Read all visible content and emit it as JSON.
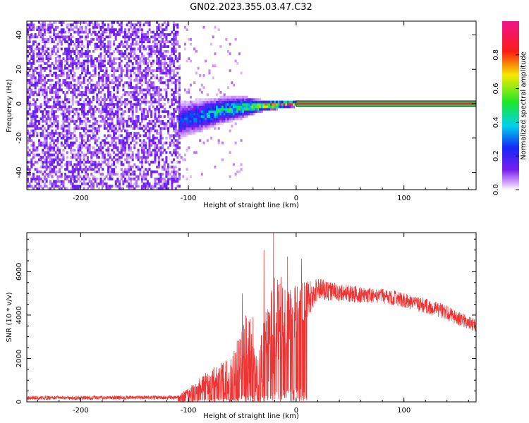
{
  "title": "GN02.2023.355.03.47.C32",
  "chart_data": [
    {
      "type": "heatmap",
      "xlabel": "Height of straight line (km)",
      "ylabel": "Frequency (Hz)",
      "xlim": [
        -250,
        167
      ],
      "ylim": [
        -50,
        48
      ],
      "x_ticks": [
        -200,
        -100,
        0,
        100
      ],
      "y_ticks": [
        -40,
        -20,
        0,
        20,
        40
      ],
      "colorbar": {
        "label": "Normalized spectral amplitude",
        "range": [
          0,
          1
        ],
        "ticks": [
          "0.0",
          "0.2",
          "0.4",
          "0.6",
          "0.8"
        ],
        "tick_values": [
          0.0,
          0.2,
          0.4,
          0.6,
          0.8
        ],
        "colormap": "rainbow (white → violet → blue → cyan → green → yellow → red → magenta)"
      },
      "features": {
        "noise_region_x": [
          -250,
          -107
        ],
        "noise_amplitude": 0.05,
        "doppler_trace": [
          {
            "x": -110,
            "f": -10,
            "spread": 7,
            "amp": 0.25
          },
          {
            "x": -90,
            "f": -7,
            "spread": 6,
            "amp": 0.35
          },
          {
            "x": -70,
            "f": -4,
            "spread": 5,
            "amp": 0.45
          },
          {
            "x": -50,
            "f": -2,
            "spread": 4,
            "amp": 0.55
          },
          {
            "x": -30,
            "f": -1,
            "spread": 2,
            "amp": 0.75
          },
          {
            "x": -10,
            "f": 0,
            "spread": 1.5,
            "amp": 0.85
          },
          {
            "x": 0,
            "f": 0,
            "spread": 1,
            "amp": 0.95
          }
        ],
        "carrier_line": {
          "x_start": 0,
          "x_end": 167,
          "f": 0,
          "amp": 1.0
        }
      }
    },
    {
      "type": "line",
      "xlabel": "Height of straight line (km)",
      "ylabel": "SNR (10 * v/v)",
      "xlim": [
        -250,
        167
      ],
      "ylim": [
        0,
        7800
      ],
      "x_ticks": [
        -200,
        -100,
        0,
        100
      ],
      "y_ticks": [
        0,
        2000,
        4000,
        6000
      ],
      "color": "#ee3333",
      "series": [
        {
          "envelope": [
            {
              "x": -250,
              "mean": 180,
              "noise": 90
            },
            {
              "x": -110,
              "mean": 200,
              "noise": 90
            },
            {
              "x": -100,
              "mean": 400,
              "noise": 250
            },
            {
              "x": -90,
              "mean": 700,
              "noise": 400
            },
            {
              "x": -80,
              "mean": 900,
              "noise": 600
            },
            {
              "x": -60,
              "mean": 1200,
              "noise": 900
            },
            {
              "x": -45,
              "mean": 2500,
              "noise": 1800
            },
            {
              "x": -35,
              "mean": 1200,
              "noise": 1200
            },
            {
              "x": -22,
              "mean": 3500,
              "noise": 2500
            },
            {
              "x": -10,
              "mean": 4000,
              "noise": 1800
            },
            {
              "x": 0,
              "mean": 4200,
              "noise": 1300
            },
            {
              "x": 20,
              "mean": 5200,
              "noise": 500
            },
            {
              "x": 50,
              "mean": 5000,
              "noise": 400
            },
            {
              "x": 90,
              "mean": 4800,
              "noise": 350
            },
            {
              "x": 130,
              "mean": 4300,
              "noise": 350
            },
            {
              "x": 167,
              "mean": 3500,
              "noise": 300
            }
          ],
          "peaks": [
            {
              "x": -21,
              "y": 7800
            },
            {
              "x": -30,
              "y": 7000
            },
            {
              "x": -8,
              "y": 6700
            },
            {
              "x": 5,
              "y": 6600
            },
            {
              "x": -50,
              "y": 5000
            },
            {
              "x": -40,
              "y": 3900
            }
          ]
        }
      ]
    }
  ]
}
